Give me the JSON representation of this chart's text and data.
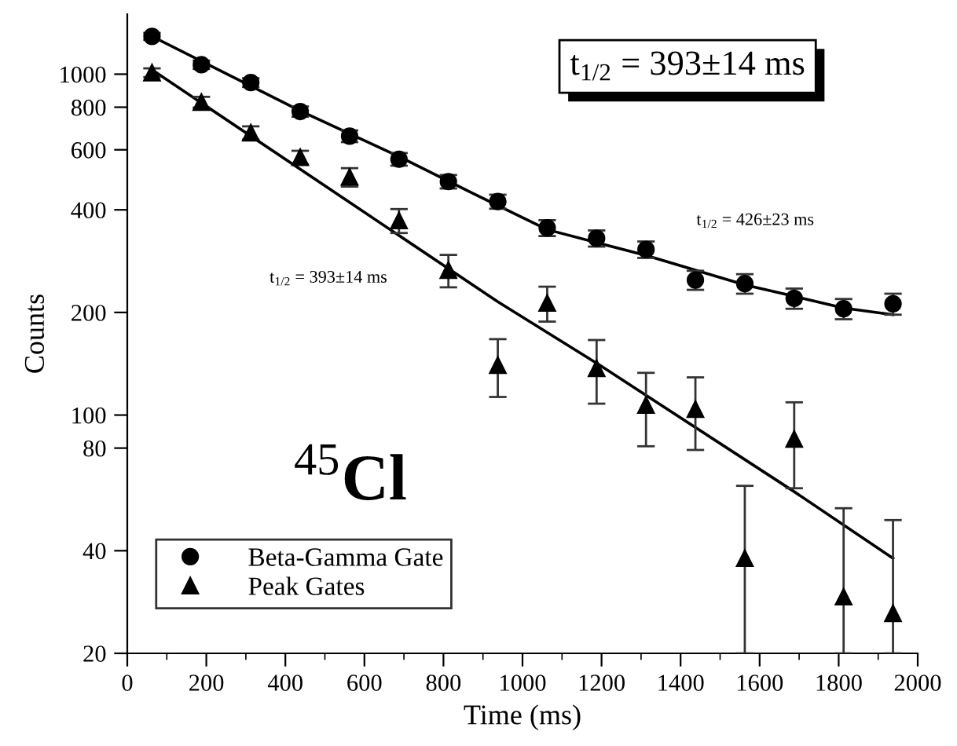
{
  "chart_data": {
    "type": "scatter",
    "xlabel": "Time (ms)",
    "ylabel": "Counts",
    "x": [
      62.5,
      187.5,
      312.5,
      437.5,
      562.5,
      687.5,
      812.5,
      937.5,
      1062.5,
      1187.5,
      1312.5,
      1437.5,
      1562.5,
      1687.5,
      1812.5,
      1937.5
    ],
    "series": [
      {
        "name": "Beta-Gamma Gate",
        "color": "#000000",
        "marker": "circle",
        "values": [
          1291,
          1066,
          945,
          777,
          658,
          563,
          484,
          423,
          354,
          330,
          306,
          249,
          243,
          220,
          205,
          212
        ],
        "errors": [
          30,
          30,
          28,
          27,
          26,
          24,
          22,
          20,
          19,
          18,
          17,
          16,
          16,
          15,
          14,
          15
        ]
      },
      {
        "name": "Peak Gates",
        "color": "#000000",
        "marker": "triangle",
        "values": [
          1010,
          828,
          673,
          570,
          499,
          372,
          266,
          140,
          213,
          137,
          107,
          104,
          38,
          85,
          29.3,
          26.2
        ],
        "errors": [
          30,
          30,
          30,
          26,
          31,
          30,
          29,
          27,
          25,
          29,
          26,
          25,
          [
            20,
            62
          ],
          24,
          [
            20,
            53.3
          ],
          [
            20,
            49.2
          ]
        ]
      },
      {
        "type": "line",
        "color": "#000000",
        "marker": "none",
        "x": [
          62.5,
          437.5,
          687.5,
          871,
          1062.5,
          1312.5,
          1562.5,
          1687.5,
          1812.5,
          1937.5
        ],
        "values": [
          1291,
          781,
          573,
          449,
          350,
          294,
          241,
          223,
          206,
          197
        ]
      },
      {
        "type": "line",
        "color": "#000000",
        "marker": "none",
        "x": [
          62.5,
          937.5,
          1187.5,
          1687.5,
          1937.5
        ],
        "values": [
          1030,
          215,
          142,
          59.6,
          38
        ]
      }
    ],
    "annotations": [
      "t$_{1/2}$ = 393±14 ms",
      "t$_{1/2}$ = 426±23 ms",
      "t$_{1/2}$ = 393±14 ms",
      "$^{45}$Cl"
    ],
    "log": "y",
    "xlim": [
      0,
      2000
    ],
    "ylim": [
      20,
      1500
    ],
    "xticks": [
      0,
      200,
      400,
      600,
      800,
      1000,
      1200,
      1400,
      1600,
      1800,
      2000
    ],
    "yticks": [
      20,
      40,
      80,
      100,
      200,
      400,
      600,
      800,
      1000
    ],
    "legend": "bottom left",
    "grid": false
  }
}
